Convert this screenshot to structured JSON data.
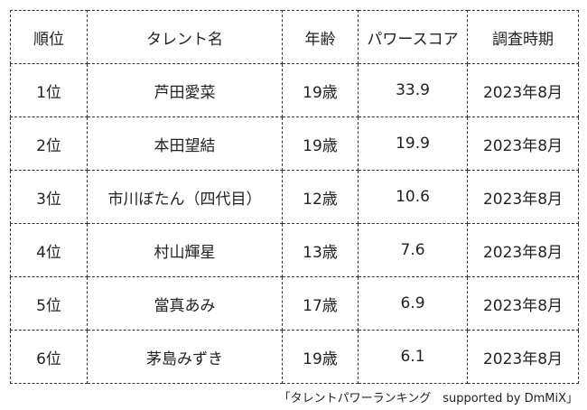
{
  "headers": [
    "順位",
    "タレント名",
    "年齢",
    "パワースコア",
    "調査時期"
  ],
  "rows": [
    [
      "1位",
      "芦田愛菜",
      "19歳",
      "33.9",
      "2023年8月"
    ],
    [
      "2位",
      "本田望結",
      "19歳",
      "19.9",
      "2023年8月"
    ],
    [
      "3位",
      "市川ぼたん（四代目）",
      "12歳",
      "10.6",
      "2023年8月"
    ],
    [
      "4位",
      "村山輝星",
      "13歳",
      "7.6",
      "2023年8月"
    ],
    [
      "5位",
      "當真あみ",
      "17歳",
      "6.9",
      "2023年8月"
    ],
    [
      "6位",
      "茅島みずき",
      "19歳",
      "6.1",
      "2023年8月"
    ]
  ],
  "caption": "「タレントパワーランキング　supported by DmMiX」"
}
